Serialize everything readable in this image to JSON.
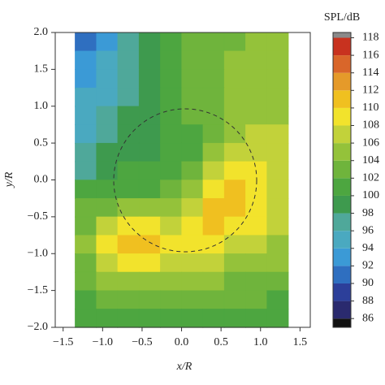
{
  "chart_data": {
    "type": "contour",
    "xlabel": "x/R",
    "ylabel": "y/R",
    "colorbar_label": "SPL/dB",
    "xlim": [
      -1.6,
      1.63
    ],
    "ylim": [
      -2.0,
      2.0
    ],
    "xticks": [
      {
        "value": -1.5,
        "label": "−1.5"
      },
      {
        "value": -1.0,
        "label": "−1.0"
      },
      {
        "value": -0.5,
        "label": "−0.5"
      },
      {
        "value": 0,
        "label": "0.0"
      },
      {
        "value": 0.5,
        "label": "0.5"
      },
      {
        "value": 1.0,
        "label": "1.0"
      },
      {
        "value": 1.5,
        "label": "1.5"
      }
    ],
    "yticks": [
      {
        "value": 2.0,
        "label": "2.0"
      },
      {
        "value": 1.5,
        "label": "1.5"
      },
      {
        "value": 1.0,
        "label": "1.0"
      },
      {
        "value": 0.5,
        "label": "0.5"
      },
      {
        "value": 0,
        "label": "0.0"
      },
      {
        "value": -0.5,
        "label": "−0.5"
      },
      {
        "value": -1.0,
        "label": "−1.0"
      },
      {
        "value": -1.5,
        "label": "−1.5"
      },
      {
        "value": -2.0,
        "label": "−2.0"
      }
    ],
    "clim": [
      85,
      118.6
    ],
    "cticks": [
      86,
      88,
      90,
      92,
      94,
      96,
      98,
      100,
      102,
      104,
      106,
      108,
      110,
      112,
      114,
      116,
      118
    ],
    "colors": [
      "#111111",
      "#2a2a6e",
      "#2c3f9a",
      "#2f6fc0",
      "#3b9ad6",
      "#4aa9c0",
      "#4fa89a",
      "#3e9a4e",
      "#4da640",
      "#6fb43c",
      "#94c23a",
      "#c2d23a",
      "#f2e32c",
      "#f0c020",
      "#e59a2a",
      "#d9662a",
      "#c8321f",
      "#8a8a8a"
    ],
    "x": [
      -1.215,
      -0.945,
      -0.675,
      -0.405,
      -0.135,
      0.135,
      0.405,
      0.675,
      0.945,
      1.215
    ],
    "y": [
      1.875,
      1.625,
      1.375,
      1.125,
      0.875,
      0.625,
      0.375,
      0.125,
      -0.125,
      -0.375,
      -0.625,
      -0.875,
      -1.125,
      -1.375,
      -1.625,
      -1.875
    ],
    "z": [
      [
        90,
        93,
        96,
        99,
        101,
        102,
        103,
        103,
        104,
        104
      ],
      [
        92,
        94,
        96,
        99,
        101,
        102,
        103,
        104,
        104,
        104
      ],
      [
        93,
        95,
        97,
        99,
        101,
        102,
        103,
        104,
        104,
        105
      ],
      [
        94,
        95,
        97,
        99,
        101,
        102,
        103,
        104,
        105,
        105
      ],
      [
        94,
        96,
        98,
        99,
        100,
        102,
        103,
        104,
        105,
        105
      ],
      [
        95,
        97,
        98,
        99,
        100,
        101,
        103,
        105,
        106,
        106
      ],
      [
        96,
        98,
        99,
        99,
        100,
        101,
        104,
        106,
        107,
        106
      ],
      [
        97,
        99,
        100,
        100,
        101,
        103,
        106,
        108,
        108,
        107
      ],
      [
        100,
        100,
        101,
        101,
        102,
        105,
        108,
        110,
        109,
        107
      ],
      [
        102,
        103,
        104,
        104,
        105,
        107,
        110,
        111,
        109,
        107
      ],
      [
        103,
        106,
        108,
        108,
        107,
        108,
        111,
        109,
        108,
        106
      ],
      [
        104,
        108,
        110,
        111,
        109,
        108,
        108,
        107,
        106,
        105
      ],
      [
        103,
        106,
        108,
        108,
        107,
        106,
        106,
        105,
        104,
        104
      ],
      [
        102,
        104,
        105,
        105,
        105,
        104,
        104,
        103,
        103,
        102
      ],
      [
        101,
        102,
        103,
        103,
        103,
        103,
        102,
        102,
        102,
        101
      ],
      [
        100,
        101,
        101,
        101,
        101,
        101,
        101,
        101,
        100,
        100
      ]
    ]
  }
}
